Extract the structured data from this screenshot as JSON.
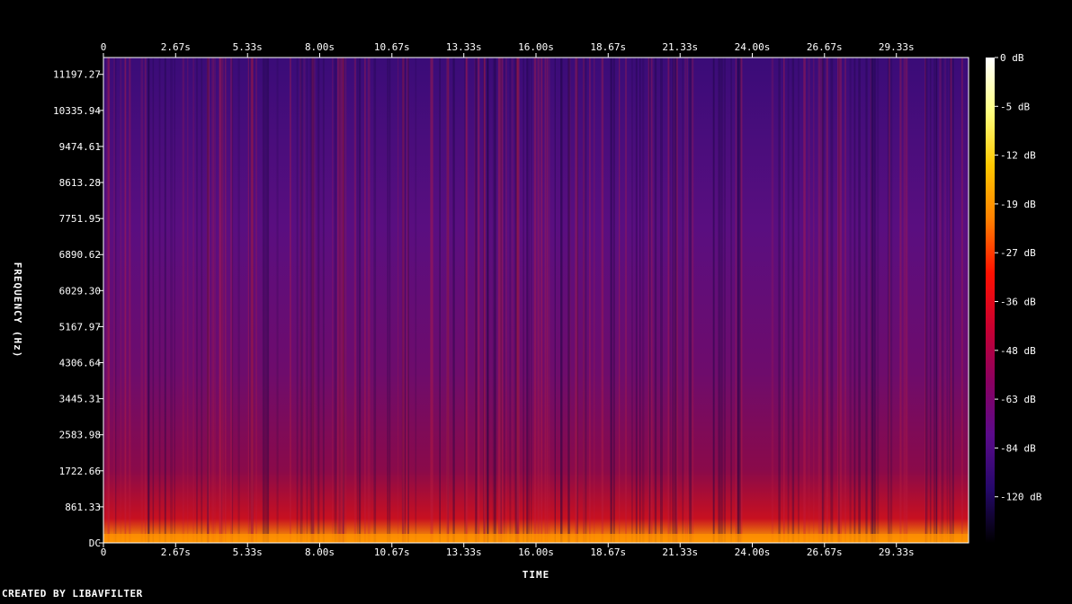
{
  "footer_text": "CREATED BY LIBAVFILTER",
  "chart_data": {
    "type": "heatmap",
    "kind": "spectrogram",
    "xlabel": "TIME",
    "ylabel": "FREQUENCY (Hz)",
    "x_ticks": [
      "0",
      "2.67s",
      "5.33s",
      "8.00s",
      "10.67s",
      "13.33s",
      "16.00s",
      "18.67s",
      "21.33s",
      "24.00s",
      "26.67s",
      "29.33s"
    ],
    "x_tick_values": [
      0,
      2.67,
      5.33,
      8.0,
      10.67,
      13.33,
      16.0,
      18.67,
      21.33,
      24.0,
      26.67,
      29.33
    ],
    "xlim": [
      0,
      32.0
    ],
    "y_ticks": [
      "DC",
      "861.33",
      "1722.66",
      "2583.98",
      "3445.31",
      "4306.64",
      "5167.97",
      "6029.30",
      "6890.62",
      "7751.95",
      "8613.28",
      "9474.61",
      "10335.94",
      "11197.27"
    ],
    "y_tick_values": [
      0,
      861.33,
      1722.66,
      2583.98,
      3445.31,
      4306.64,
      5167.97,
      6029.3,
      6890.62,
      7751.95,
      8613.28,
      9474.61,
      10335.94,
      11197.27
    ],
    "ylim": [
      0,
      11600
    ],
    "colorbar": {
      "labels": [
        "0 dB",
        "-5 dB",
        "-12 dB",
        "-19 dB",
        "-27 dB",
        "-36 dB",
        "-48 dB",
        "-63 dB",
        "-84 dB",
        "-120 dB"
      ],
      "values": [
        0,
        -5,
        -12,
        -19,
        -27,
        -36,
        -48,
        -63,
        -84,
        -120
      ],
      "colors": [
        "#ffffff",
        "#ffff80",
        "#ffc800",
        "#ff8000",
        "#ff1000",
        "#c80030",
        "#8a0060",
        "#5a0a8a",
        "#25086a",
        "#000000"
      ]
    },
    "grid": false,
    "colors": {
      "background": "#000000",
      "axis": "#ffffff"
    }
  }
}
